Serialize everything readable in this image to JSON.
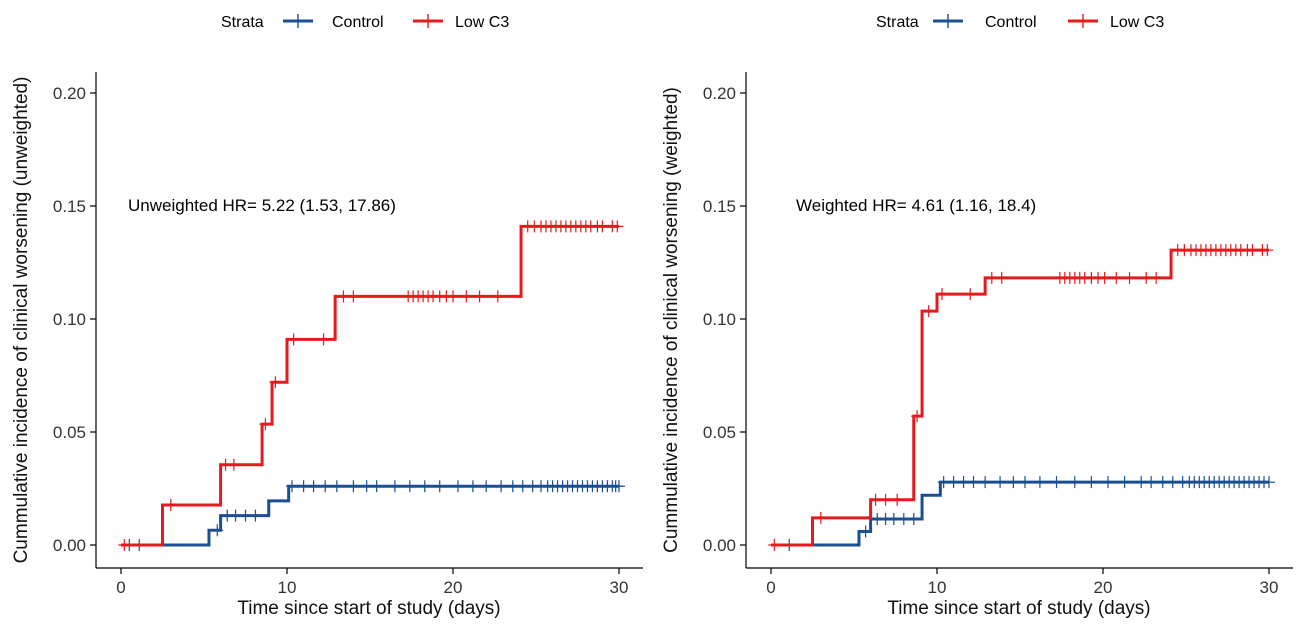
{
  "colors": {
    "control": "#1b4f93",
    "low_c3": "#e41a1c"
  },
  "chart_data": [
    {
      "type": "line",
      "step": true,
      "legend": {
        "title": "Strata",
        "position": "top",
        "entries": [
          "Control",
          "Low C3"
        ]
      },
      "xlabel": "Time since start of study (days)",
      "ylabel": "Cummulative incidence of clinical worsening (unweighted)",
      "annotation": "Unweighted HR= 5.22 (1.53, 17.86)",
      "xlim": [
        0,
        30
      ],
      "ylim": [
        0,
        0.2
      ],
      "xticks": [
        0,
        10,
        20,
        30
      ],
      "xtick_labels": [
        "0",
        "10",
        "20",
        "30"
      ],
      "yticks": [
        0,
        0.05,
        0.1,
        0.15,
        0.2
      ],
      "ytick_labels": [
        "0.00",
        "0.05",
        "0.10",
        "0.15",
        "0.20"
      ],
      "grid": false,
      "series": [
        {
          "name": "Control",
          "x": [
            0,
            5.3,
            6.0,
            8.9,
            10.1,
            30
          ],
          "y": [
            0,
            0.0065,
            0.013,
            0.0195,
            0.026,
            0.026
          ],
          "censor_x": [
            0.5,
            1.1,
            5.8,
            6.4,
            6.9,
            7.5,
            8.1,
            10.3,
            11.0,
            11.6,
            12.3,
            13.0,
            14.0,
            14.8,
            15.4,
            16.5,
            17.4,
            18.3,
            19.2,
            20.3,
            21.2,
            22.0,
            22.9,
            23.6,
            24.2,
            24.8,
            25.3,
            25.7,
            26.0,
            26.3,
            26.6,
            26.9,
            27.2,
            27.5,
            27.8,
            28.1,
            28.4,
            28.7,
            29.0,
            29.3,
            29.6,
            29.8,
            30.0
          ]
        },
        {
          "name": "Low C3",
          "x": [
            0,
            2.5,
            6.0,
            8.5,
            9.1,
            10.0,
            12.9,
            24.1,
            30
          ],
          "y": [
            0,
            0.0177,
            0.0355,
            0.0535,
            0.072,
            0.091,
            0.11,
            0.141,
            0.141
          ],
          "censor_x": [
            0.2,
            3.0,
            6.3,
            6.8,
            8.7,
            9.3,
            10.4,
            12.2,
            13.4,
            14.0,
            17.3,
            17.6,
            17.9,
            18.2,
            18.5,
            18.8,
            19.2,
            19.6,
            20.0,
            20.8,
            21.6,
            22.7,
            24.5,
            24.9,
            25.3,
            25.6,
            25.9,
            26.2,
            26.5,
            26.8,
            27.1,
            27.4,
            27.7,
            28.0,
            28.3,
            28.7,
            29.0,
            29.6,
            29.9
          ]
        }
      ]
    },
    {
      "type": "line",
      "step": true,
      "legend": {
        "title": "Strata",
        "position": "top",
        "entries": [
          "Control",
          "Low C3"
        ]
      },
      "xlabel": "Time since start of study (days)",
      "ylabel": "Cummulative incidence of clinical worsening (weighted)",
      "annotation": "Weighted HR= 4.61 (1.16, 18.4)",
      "xlim": [
        0,
        30
      ],
      "ylim": [
        0,
        0.2
      ],
      "xticks": [
        0,
        10,
        20,
        30
      ],
      "xtick_labels": [
        "0",
        "10",
        "20",
        "30"
      ],
      "yticks": [
        0,
        0.05,
        0.1,
        0.15,
        0.2
      ],
      "ytick_labels": [
        "0.00",
        "0.05",
        "0.10",
        "0.15",
        "0.20"
      ],
      "grid": false,
      "series": [
        {
          "name": "Control",
          "x": [
            0,
            5.3,
            6.0,
            9.1,
            10.2,
            30
          ],
          "y": [
            0,
            0.006,
            0.0115,
            0.022,
            0.0278,
            0.0278
          ],
          "censor_x": [
            1.1,
            5.7,
            6.4,
            6.9,
            7.4,
            8.0,
            8.6,
            10.4,
            11.0,
            11.6,
            12.2,
            12.9,
            13.8,
            14.6,
            15.3,
            16.2,
            17.2,
            18.3,
            19.3,
            20.3,
            21.3,
            22.3,
            22.9,
            23.6,
            24.2,
            24.8,
            25.2,
            25.5,
            25.8,
            26.1,
            26.4,
            26.7,
            27.0,
            27.3,
            27.6,
            27.9,
            28.2,
            28.5,
            28.8,
            29.1,
            29.4,
            29.7,
            30.0
          ]
        },
        {
          "name": "Low C3",
          "x": [
            0,
            2.5,
            6.0,
            8.6,
            9.1,
            10.0,
            12.9,
            24.1,
            30
          ],
          "y": [
            0,
            0.012,
            0.02,
            0.057,
            0.1035,
            0.111,
            0.1182,
            0.1305,
            0.1305
          ],
          "censor_x": [
            0.2,
            3.0,
            6.3,
            6.9,
            7.6,
            8.8,
            9.5,
            10.3,
            12.0,
            13.3,
            13.9,
            17.4,
            17.7,
            18.0,
            18.3,
            18.6,
            18.9,
            19.3,
            19.7,
            20.1,
            20.8,
            21.6,
            22.6,
            23.2,
            24.5,
            24.9,
            25.3,
            25.6,
            25.9,
            26.2,
            26.5,
            26.8,
            27.1,
            27.4,
            27.7,
            28.0,
            28.3,
            28.7,
            29.0,
            29.6,
            29.9
          ]
        }
      ]
    }
  ]
}
